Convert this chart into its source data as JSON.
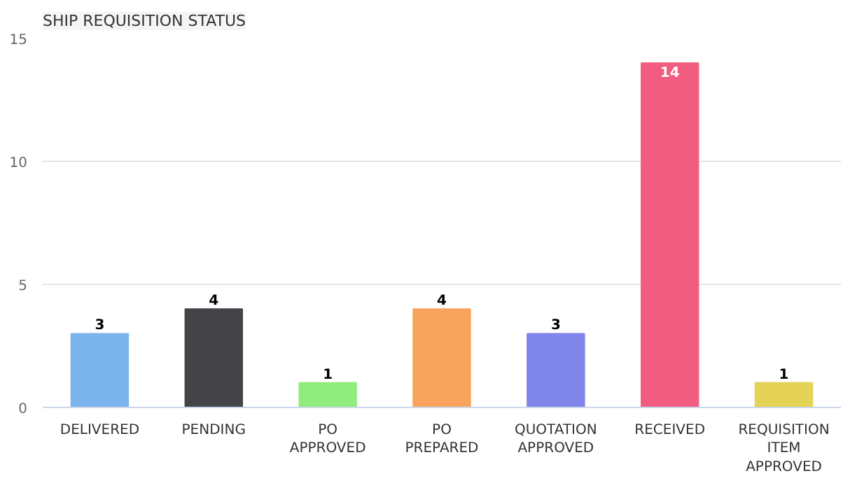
{
  "chart_data": {
    "type": "bar",
    "title": "SHIP REQUISITION STATUS",
    "categories": [
      "DELIVERED",
      "PENDING",
      "PO APPROVED",
      "PO PREPARED",
      "QUOTATION APPROVED",
      "RECEIVED",
      "REQUISITION ITEM APPROVED"
    ],
    "values": [
      3,
      4,
      1,
      4,
      3,
      14,
      1
    ],
    "colors": [
      "#7cb5ec",
      "#434348",
      "#90ed7d",
      "#f7a35c",
      "#8085e9",
      "#f15c80",
      "#e4d354"
    ],
    "ylim": [
      0,
      15
    ],
    "yticks": [
      0,
      5,
      10,
      15
    ],
    "grid": "y",
    "data_labels": true
  }
}
